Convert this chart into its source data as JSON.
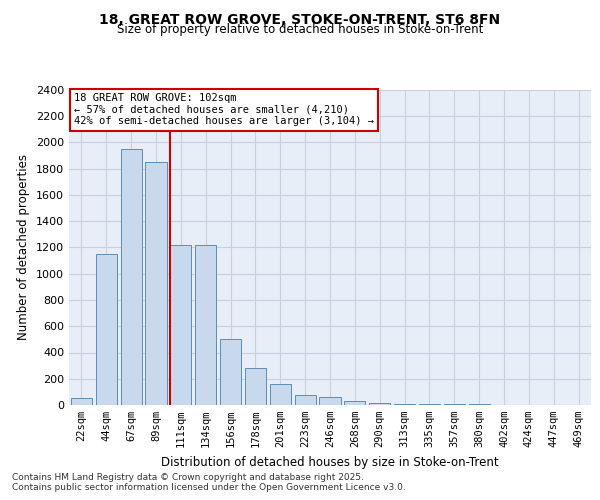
{
  "title": "18, GREAT ROW GROVE, STOKE-ON-TRENT, ST6 8FN",
  "subtitle": "Size of property relative to detached houses in Stoke-on-Trent",
  "xlabel": "Distribution of detached houses by size in Stoke-on-Trent",
  "ylabel": "Number of detached properties",
  "categories": [
    "22sqm",
    "44sqm",
    "67sqm",
    "89sqm",
    "111sqm",
    "134sqm",
    "156sqm",
    "178sqm",
    "201sqm",
    "223sqm",
    "246sqm",
    "268sqm",
    "290sqm",
    "313sqm",
    "335sqm",
    "357sqm",
    "380sqm",
    "402sqm",
    "424sqm",
    "447sqm",
    "469sqm"
  ],
  "values": [
    50,
    1150,
    1950,
    1850,
    1220,
    1220,
    500,
    280,
    160,
    80,
    60,
    30,
    18,
    10,
    6,
    4,
    4,
    2,
    2,
    2,
    2
  ],
  "bar_color": "#c8d9ee",
  "bar_edgecolor": "#5b8db8",
  "vline_x": 3.55,
  "vline_color": "#cc0000",
  "annotation_text": "18 GREAT ROW GROVE: 102sqm\n← 57% of detached houses are smaller (4,210)\n42% of semi-detached houses are larger (3,104) →",
  "annotation_box_color": "#cc0000",
  "ylim": [
    0,
    2400
  ],
  "yticks": [
    0,
    200,
    400,
    600,
    800,
    1000,
    1200,
    1400,
    1600,
    1800,
    2000,
    2200,
    2400
  ],
  "grid_color": "#c8d0e0",
  "bg_color": "#e8eef8",
  "footnote1": "Contains HM Land Registry data © Crown copyright and database right 2025.",
  "footnote2": "Contains public sector information licensed under the Open Government Licence v3.0."
}
